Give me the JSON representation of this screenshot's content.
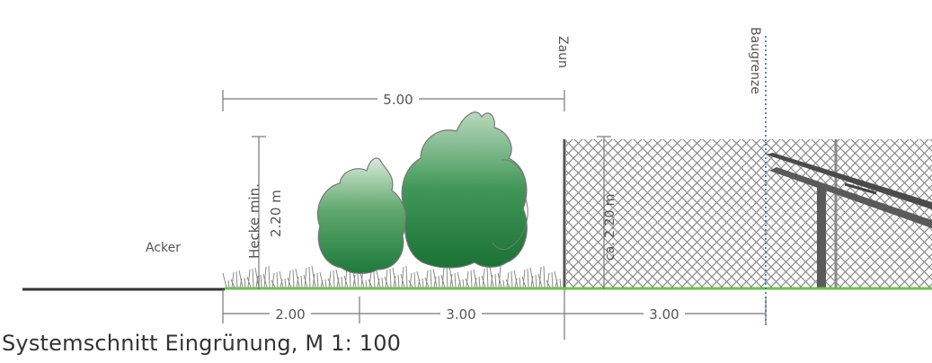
{
  "labels": {
    "zaun": "Zaun",
    "baugrenze": "Baugrenze",
    "acker": "Acker",
    "hecke_line1": "Hecke min.",
    "hecke_line2": "2.20 m",
    "fence_height": "ca. 2.20 m"
  },
  "dimensions": {
    "top_total": "5.00",
    "bottom_a": "2.00",
    "bottom_b": "3.00",
    "bottom_c": "3.00"
  },
  "caption": "Systemschnitt Eingrünung, M 1: 100",
  "colors": {
    "ground_green": "#6cc24a",
    "ground_dark": "#333333",
    "dimension_line": "#777777",
    "fence": "#8a8a8a",
    "tree_dark": "#1e7a3c",
    "tree_light": "#d8ead8",
    "baugrenze_line": "#2a5db0"
  }
}
